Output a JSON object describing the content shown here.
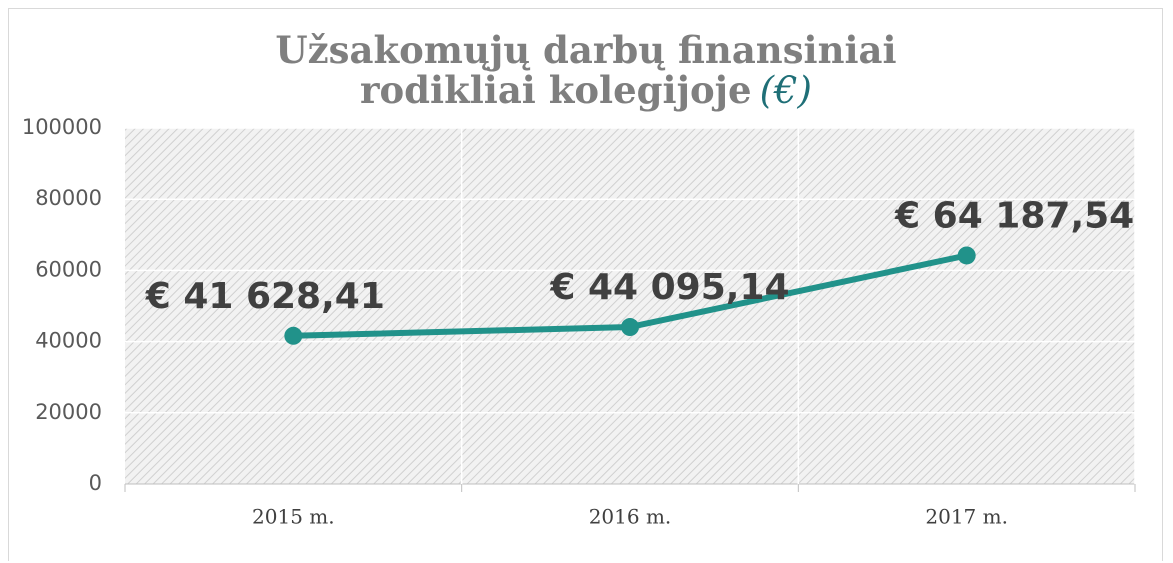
{
  "chart_data": {
    "type": "line",
    "title": "Užsakomųjų darbų finansiniai rodikliai kolegijoje",
    "title_suffix": "(€)",
    "categories": [
      "2015 m.",
      "2016 m.",
      "2017 m."
    ],
    "series": [
      {
        "color": "#21928a",
        "values": [
          41628.41,
          44095.14,
          64187.54
        ],
        "value_labels": [
          "€ 41 628,41",
          "€ 44 095,14",
          "€ 64 187,54"
        ]
      }
    ],
    "ylim": [
      0,
      100000
    ],
    "yticks": [
      0,
      20000,
      40000,
      60000,
      80000,
      100000
    ],
    "grid": true
  }
}
